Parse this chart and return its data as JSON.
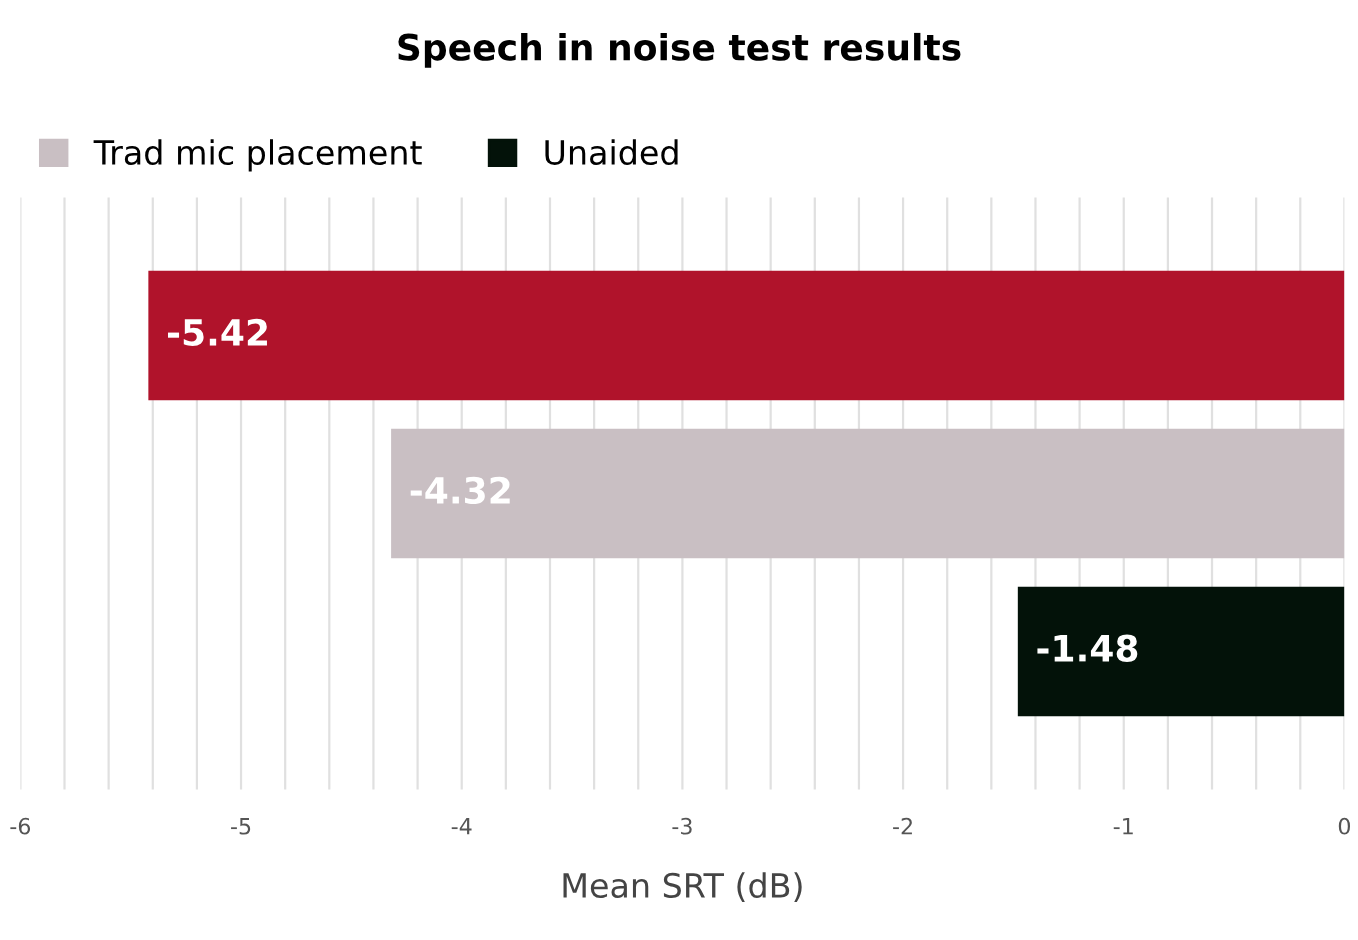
{
  "chart_data": {
    "type": "bar",
    "orientation": "horizontal",
    "title": "Speech in noise test results",
    "xlabel": "Mean SRT (dB)",
    "categories": [
      null
    ],
    "series": [
      {
        "color": "#b0132b",
        "values": [
          -5.42
        ]
      },
      {
        "name": "Trad mic placement",
        "color": "#c9bfc3",
        "values": [
          -4.32
        ]
      },
      {
        "name": "Unaided",
        "color": "#031209",
        "values": [
          -1.48
        ]
      }
    ],
    "xlim": [
      -6,
      0
    ],
    "xticks": [
      -6,
      {
        "value": -5.8,
        "label": null
      },
      {
        "value": -5.6,
        "label": null
      },
      {
        "value": -5.4,
        "label": null
      },
      {
        "value": -5.2,
        "label": null
      },
      -5,
      {
        "value": -4.8,
        "label": null
      },
      {
        "value": -4.6,
        "label": null
      },
      {
        "value": -4.4,
        "label": null
      },
      {
        "value": -4.2,
        "label": null
      },
      -4,
      {
        "value": -3.8,
        "label": null
      },
      {
        "value": -3.6,
        "label": null
      },
      {
        "value": -3.4,
        "label": null
      },
      {
        "value": -3.2,
        "label": null
      },
      -3,
      {
        "value": -2.8,
        "label": null
      },
      {
        "value": -2.6,
        "label": null
      },
      {
        "value": -2.4,
        "label": null
      },
      {
        "value": -2.2,
        "label": null
      },
      -2,
      {
        "value": -1.8,
        "label": null
      },
      {
        "value": -1.6,
        "label": null
      },
      {
        "value": -1.4,
        "label": null
      },
      {
        "value": -1.2,
        "label": null
      },
      -1,
      {
        "value": -0.8,
        "label": null
      },
      {
        "value": -0.6,
        "label": null
      },
      {
        "value": -0.4,
        "label": null
      },
      {
        "value": -0.2,
        "label": null
      },
      0
    ],
    "grid": "x",
    "legend": "top",
    "data_labels": true,
    "tick_labels": "x"
  }
}
